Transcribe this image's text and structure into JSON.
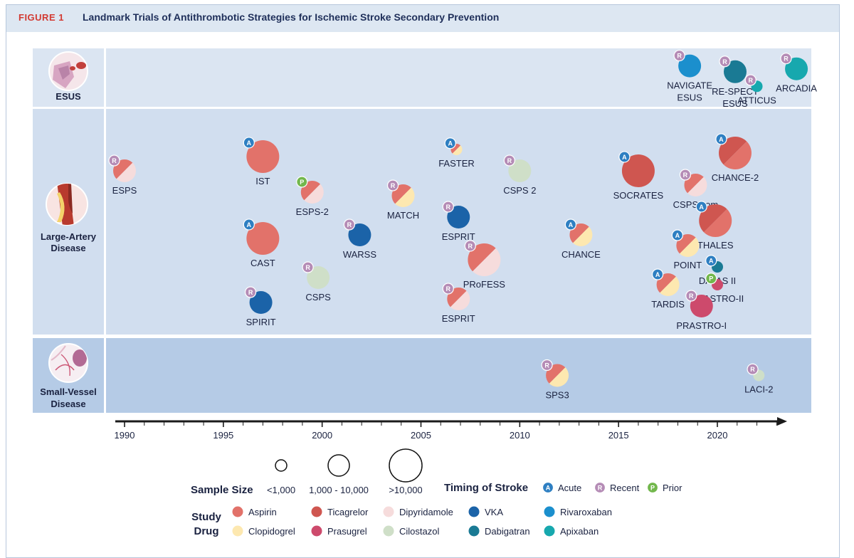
{
  "figure": {
    "label": "FIGURE 1",
    "title": "Landmark Trials of Antithrombotic Strategies for Ischemic Stroke Secondary Prevention"
  },
  "rows": [
    {
      "id": "esus",
      "lines": [
        "ESUS"
      ]
    },
    {
      "id": "lad",
      "lines": [
        "Large-Artery",
        "Disease"
      ]
    },
    {
      "id": "svd",
      "lines": [
        "Small-Vessel",
        "Disease"
      ]
    }
  ],
  "axis": {
    "min": 1989,
    "max": 2024,
    "ticks": [
      1990,
      1995,
      2000,
      2005,
      2010,
      2015,
      2020
    ]
  },
  "drug_colors": {
    "aspirin": "#e2726a",
    "ticagrelor": "#cf5650",
    "dipyridamole": "#f6dcdc",
    "vka": "#1b63a8",
    "rivaroxaban": "#1b8fcd",
    "clopidogrel": "#fde8b0",
    "prasugrel": "#cd4a6c",
    "cilostazol": "#cfdfc8",
    "dabigatran": "#1a7a94",
    "apixaban": "#17a8ae"
  },
  "timing_colors": {
    "A": "#2e7fc2",
    "R": "#b58cb6",
    "P": "#72b74c"
  },
  "trials": [
    {
      "name": "ESPS",
      "year": 1990.0,
      "row": "lad",
      "level": 0.55,
      "size": "medium",
      "timing": "R",
      "drugs": [
        "aspirin",
        "dipyridamole"
      ]
    },
    {
      "name": "IST",
      "year": 1997.0,
      "row": "lad",
      "level": 0.35,
      "size": "large",
      "timing": "A",
      "drugs": [
        "aspirin"
      ]
    },
    {
      "name": "ESPS-2",
      "year": 1999.5,
      "row": "lad",
      "level": 0.85,
      "size": "medium",
      "timing": "P",
      "drugs": [
        "aspirin",
        "dipyridamole"
      ]
    },
    {
      "name": "CAST",
      "year": 1997.0,
      "row": "lad",
      "level": 1.5,
      "size": "large",
      "timing": "A",
      "drugs": [
        "aspirin"
      ]
    },
    {
      "name": "WARSS",
      "year": 2001.9,
      "row": "lad",
      "level": 1.45,
      "size": "medium",
      "timing": "R",
      "drugs": [
        "vka"
      ]
    },
    {
      "name": "CSPS",
      "year": 1999.8,
      "row": "lad",
      "level": 2.05,
      "size": "medium",
      "timing": "R",
      "drugs": [
        "cilostazol"
      ]
    },
    {
      "name": "SPIRIT",
      "year": 1996.9,
      "row": "lad",
      "level": 2.4,
      "size": "medium",
      "timing": "R",
      "drugs": [
        "vka"
      ]
    },
    {
      "name": "MATCH",
      "year": 2004.1,
      "row": "lad",
      "level": 0.9,
      "size": "medium",
      "timing": "R",
      "drugs": [
        "aspirin",
        "clopidogrel"
      ]
    },
    {
      "name": "FASTER",
      "year": 2006.8,
      "row": "lad",
      "level": 0.25,
      "size": "small",
      "timing": "A",
      "drugs": [
        "aspirin",
        "clopidogrel"
      ]
    },
    {
      "name": "ESPRIT",
      "year": 2006.9,
      "row": "lad",
      "level": 1.2,
      "size": "medium",
      "timing": "R",
      "drugs": [
        "vka"
      ]
    },
    {
      "name": "PRoFESS",
      "year": 2008.2,
      "row": "lad",
      "level": 1.8,
      "size": "large",
      "timing": "R",
      "drugs": [
        "aspirin",
        "dipyridamole"
      ]
    },
    {
      "name": "ESPRIT",
      "year": 2006.9,
      "row": "lad",
      "level": 2.35,
      "size": "medium",
      "timing": "R",
      "drugs": [
        "aspirin",
        "dipyridamole"
      ]
    },
    {
      "name": "CSPS 2",
      "year": 2010.0,
      "row": "lad",
      "level": 0.55,
      "size": "medium",
      "timing": "R",
      "drugs": [
        "cilostazol"
      ]
    },
    {
      "name": "CHANCE",
      "year": 2013.1,
      "row": "lad",
      "level": 1.45,
      "size": "medium",
      "timing": "A",
      "drugs": [
        "aspirin",
        "clopidogrel"
      ]
    },
    {
      "name": "SOCRATES",
      "year": 2016.0,
      "row": "lad",
      "level": 0.55,
      "size": "large",
      "timing": "A",
      "drugs": [
        "ticagrelor"
      ]
    },
    {
      "name": "CSPS.com",
      "year": 2018.9,
      "row": "lad",
      "level": 0.75,
      "size": "medium",
      "timing": "R",
      "drugs": [
        "aspirin",
        "dipyridamole"
      ]
    },
    {
      "name": "CHANCE-2",
      "year": 2020.9,
      "row": "lad",
      "level": 0.3,
      "size": "large",
      "timing": "A",
      "drugs": [
        "ticagrelor",
        "aspirin"
      ]
    },
    {
      "name": "THALES",
      "year": 2019.9,
      "row": "lad",
      "level": 1.25,
      "size": "large",
      "timing": "A",
      "drugs": [
        "ticagrelor",
        "aspirin"
      ]
    },
    {
      "name": "POINT",
      "year": 2018.5,
      "row": "lad",
      "level": 1.6,
      "size": "medium",
      "timing": "A",
      "drugs": [
        "aspirin",
        "clopidogrel"
      ]
    },
    {
      "name": "DATAS II",
      "year": 2020.0,
      "row": "lad",
      "level": 1.9,
      "size": "small",
      "timing": "A",
      "drugs": [
        "dabigatran"
      ]
    },
    {
      "name": "TARDIS",
      "year": 2017.5,
      "row": "lad",
      "level": 2.15,
      "size": "medium",
      "timing": "A",
      "drugs": [
        "aspirin",
        "clopidogrel"
      ]
    },
    {
      "name": "PRASTRO-II",
      "year": 2020.0,
      "row": "lad",
      "level": 2.15,
      "size": "small",
      "timing": "P",
      "drugs": [
        "prasugrel"
      ]
    },
    {
      "name": "PRASTRO-I",
      "year": 2019.2,
      "row": "lad",
      "level": 2.45,
      "size": "medium",
      "timing": "R",
      "drugs": [
        "prasugrel"
      ]
    },
    {
      "name": "SPS3",
      "year": 2011.9,
      "row": "svd",
      "level": 0.5,
      "size": "medium",
      "timing": "R",
      "drugs": [
        "aspirin",
        "clopidogrel"
      ]
    },
    {
      "name": "LACI-2",
      "year": 2022.1,
      "row": "svd",
      "level": 0.5,
      "size": "small",
      "timing": "R",
      "drugs": [
        "cilostazol"
      ]
    },
    {
      "name": "NAVIGATE ESUS",
      "year": 2018.6,
      "row": "esus",
      "level": 0.3,
      "size": "medium",
      "timing": "R",
      "drugs": [
        "rivaroxaban"
      ]
    },
    {
      "name": "RE-SPECT ESUS",
      "year": 2020.9,
      "row": "esus",
      "level": 0.4,
      "size": "medium",
      "timing": "R",
      "drugs": [
        "dabigatran"
      ]
    },
    {
      "name": "ATTICUS",
      "year": 2022.0,
      "row": "esus",
      "level": 0.65,
      "size": "small",
      "timing": "R",
      "drugs": [
        "apixaban"
      ]
    },
    {
      "name": "ARCADIA",
      "year": 2024.0,
      "row": "esus",
      "level": 0.35,
      "size": "medium",
      "timing": "R",
      "drugs": [
        "apixaban"
      ]
    }
  ],
  "legend": {
    "sample_size_title": "Sample Size",
    "sample_sizes": [
      {
        "size": "small",
        "label": "<1,000"
      },
      {
        "size": "medium",
        "label": "1,000 - 10,000"
      },
      {
        "size": "large",
        "label": ">10,000"
      }
    ],
    "timing_title": "Timing of Stroke",
    "timings": [
      {
        "key": "A",
        "label": "Acute"
      },
      {
        "key": "R",
        "label": "Recent"
      },
      {
        "key": "P",
        "label": "Prior"
      }
    ],
    "drug_title_lines": [
      "Study",
      "Drug"
    ],
    "drugs": [
      {
        "key": "aspirin",
        "label": "Aspirin"
      },
      {
        "key": "ticagrelor",
        "label": "Ticagrelor"
      },
      {
        "key": "dipyridamole",
        "label": "Dipyridamole"
      },
      {
        "key": "vka",
        "label": "VKA"
      },
      {
        "key": "rivaroxaban",
        "label": "Rivaroxaban"
      },
      {
        "key": "clopidogrel",
        "label": "Clopidogrel"
      },
      {
        "key": "prasugrel",
        "label": "Prasugrel"
      },
      {
        "key": "cilostazol",
        "label": "Cilostazol"
      },
      {
        "key": "dabigatran",
        "label": "Dabigatran"
      },
      {
        "key": "apixaban",
        "label": "Apixaban"
      }
    ]
  }
}
